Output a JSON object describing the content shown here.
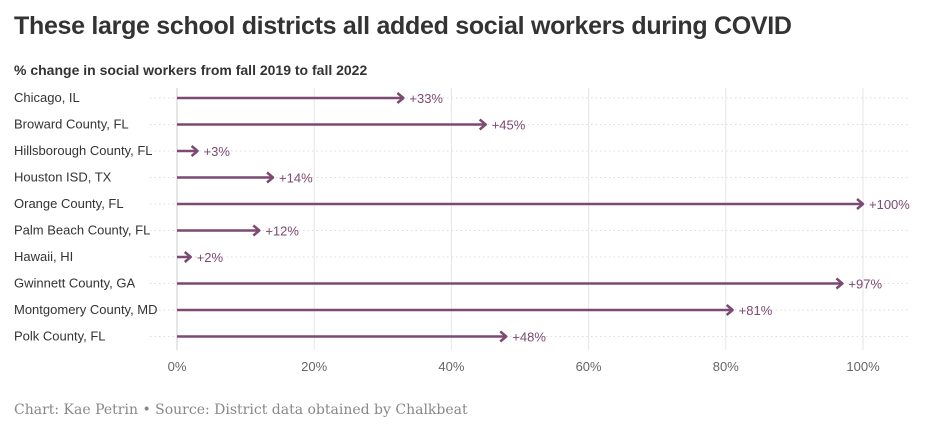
{
  "chart_data": {
    "type": "bar",
    "title": "These large school districts all added social workers during COVID",
    "subtitle": "% change in social workers from fall 2019 to fall 2022",
    "categories": [
      "Chicago, IL",
      "Broward County, FL",
      "Hillsborough County, FL",
      "Houston ISD, TX",
      "Orange County, FL",
      "Palm Beach County, FL",
      "Hawaii, HI",
      "Gwinnett County, GA",
      "Montgomery County, MD",
      "Polk County, FL"
    ],
    "values": [
      33,
      45,
      3,
      14,
      100,
      12,
      2,
      97,
      81,
      48
    ],
    "value_labels": [
      "+33%",
      "+45%",
      "+3%",
      "+14%",
      "+100%",
      "+12%",
      "+2%",
      "+97%",
      "+81%",
      "+48%"
    ],
    "xlim": [
      0,
      100
    ],
    "xticks": [
      0,
      20,
      40,
      60,
      80,
      100
    ],
    "xtick_labels": [
      "0%",
      "20%",
      "40%",
      "60%",
      "80%",
      "100%"
    ],
    "xlabel": "",
    "ylabel": "",
    "grid": true,
    "color": "#7c4a72"
  },
  "footer": "Chart: Kae Petrin • Source: District data obtained by Chalkbeat"
}
